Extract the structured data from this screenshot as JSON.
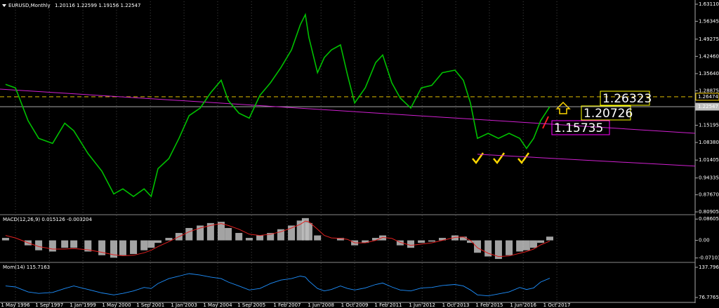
{
  "chart_data": [
    {
      "type": "line",
      "title": "EURUSD,Monthly",
      "subtitle": "1.20116 1.22599 1.19156 1.22547",
      "x": [
        1995.94,
        1996.33,
        1996.83,
        1997.25,
        1997.8,
        1998.28,
        1998.64,
        1999.2,
        1999.75,
        2000.22,
        2000.58,
        2001.0,
        2001.42,
        2001.7,
        2001.97,
        2002.4,
        2002.8,
        2003.2,
        2003.64,
        2004.05,
        2004.47,
        2004.75,
        2005.17,
        2005.58,
        2006.0,
        2006.42,
        2006.83,
        2007.25,
        2007.6,
        2007.8,
        2007.94,
        2008.28,
        2008.55,
        2008.83,
        2009.19,
        2009.47,
        2009.75,
        2010.17,
        2010.58,
        2010.86,
        2011.22,
        2011.55,
        2011.97,
        2012.39,
        2012.8,
        2013.22,
        2013.72,
        2014.05,
        2014.33,
        2014.61,
        2015.03,
        2015.44,
        2015.86,
        2016.28,
        2016.55,
        2016.83,
        2017.11,
        2017.47
      ],
      "series": [
        {
          "name": "EURUSD",
          "color": "#00c000",
          "values": [
            1.314,
            1.3,
            1.17,
            1.1,
            1.08,
            1.16,
            1.13,
            1.04,
            0.97,
            0.88,
            0.9,
            0.87,
            0.9,
            0.87,
            0.98,
            1.02,
            1.1,
            1.19,
            1.22,
            1.28,
            1.33,
            1.25,
            1.2,
            1.18,
            1.27,
            1.32,
            1.38,
            1.45,
            1.55,
            1.59,
            1.5,
            1.36,
            1.42,
            1.45,
            1.47,
            1.35,
            1.24,
            1.3,
            1.4,
            1.43,
            1.32,
            1.26,
            1.22,
            1.3,
            1.31,
            1.36,
            1.37,
            1.33,
            1.24,
            1.1,
            1.12,
            1.1,
            1.12,
            1.1,
            1.06,
            1.1,
            1.17,
            1.22547
          ]
        }
      ],
      "trendlines": [
        {
          "color": "#d020d0",
          "x": [
            1995.72,
            2023.22
          ],
          "values": [
            1.295,
            1.12
          ]
        },
        {
          "color": "#d020d0",
          "x": [
            2014.61,
            2023.22
          ],
          "values": [
            1.037,
            0.99
          ]
        }
      ],
      "levels": [
        {
          "value": 1.26474,
          "color": "#ffd700",
          "dashed": true
        },
        {
          "value": 1.22547,
          "color": "#c0c0c0",
          "dashed": false
        }
      ],
      "annotations": [
        {
          "text": "1.26323",
          "color": "#ffff00"
        },
        {
          "text": "1.20726",
          "color": "#ffff00"
        },
        {
          "text": "1.15735",
          "color": "#ff00ff"
        }
      ],
      "xlim": [
        1995.72,
        2023.22
      ],
      "ylim": [
        0.8007,
        1.6422
      ],
      "yticks": [
        {
          "value": 1.6311,
          "label": "1.63110"
        },
        1.56345,
        1.49275,
        {
          "value": 1.4246,
          "label": "1.42460"
        },
        {
          "value": 1.3564,
          "label": "1.35640"
        },
        1.28875,
        1.15195,
        {
          "value": 1.0838,
          "label": "1.08380"
        },
        1.01405,
        0.94335,
        {
          "value": 0.8767,
          "label": "0.87670"
        },
        0.80905
      ]
    },
    {
      "type": "macd",
      "title": "MACD(12,26,9) 0.015126 -0.003204",
      "x": [
        1995.94,
        1996.33,
        1996.83,
        1997.25,
        1997.8,
        1998.28,
        1998.64,
        1999.2,
        1999.75,
        2000.22,
        2000.58,
        2001.0,
        2001.42,
        2001.7,
        2001.97,
        2002.4,
        2002.8,
        2003.2,
        2003.64,
        2004.05,
        2004.47,
        2004.75,
        2005.17,
        2005.58,
        2006.0,
        2006.42,
        2006.83,
        2007.25,
        2007.6,
        2007.8,
        2007.94,
        2008.28,
        2008.55,
        2008.83,
        2009.19,
        2009.47,
        2009.75,
        2010.17,
        2010.58,
        2010.86,
        2011.22,
        2011.55,
        2011.97,
        2012.39,
        2012.8,
        2013.22,
        2013.72,
        2014.05,
        2014.33,
        2014.61,
        2015.03,
        2015.44,
        2015.86,
        2016.28,
        2016.55,
        2016.83,
        2017.11,
        2017.47
      ],
      "series": [
        {
          "name": "MACD",
          "color": "#c0c0c0",
          "values": [
            0.01,
            0.0,
            -0.02,
            -0.04,
            -0.045,
            -0.03,
            -0.03,
            -0.045,
            -0.06,
            -0.07,
            -0.06,
            -0.055,
            -0.04,
            -0.03,
            -0.01,
            0.01,
            0.03,
            0.05,
            0.06,
            0.07,
            0.075,
            0.05,
            0.03,
            0.01,
            0.02,
            0.03,
            0.045,
            0.06,
            0.08,
            0.09,
            0.07,
            0.02,
            0.0,
            0.0,
            0.01,
            0.0,
            -0.02,
            -0.01,
            0.01,
            0.02,
            0.0,
            -0.02,
            -0.03,
            -0.01,
            -0.005,
            0.01,
            0.02,
            0.015,
            -0.01,
            -0.05,
            -0.065,
            -0.075,
            -0.06,
            -0.045,
            -0.04,
            -0.03,
            -0.01,
            0.015126
          ]
        },
        {
          "name": "Signal",
          "color": "#e02020",
          "values": [
            0.02,
            0.01,
            -0.01,
            -0.025,
            -0.035,
            -0.035,
            -0.033,
            -0.038,
            -0.048,
            -0.058,
            -0.062,
            -0.06,
            -0.05,
            -0.04,
            -0.025,
            -0.005,
            0.015,
            0.035,
            0.05,
            0.06,
            0.068,
            0.06,
            0.045,
            0.025,
            0.02,
            0.025,
            0.035,
            0.05,
            0.065,
            0.078,
            0.075,
            0.045,
            0.02,
            0.01,
            0.008,
            0.004,
            -0.01,
            -0.01,
            0.0,
            0.012,
            0.008,
            -0.008,
            -0.02,
            -0.015,
            -0.01,
            0.0,
            0.012,
            0.014,
            0.0,
            -0.03,
            -0.052,
            -0.065,
            -0.063,
            -0.052,
            -0.045,
            -0.035,
            -0.018,
            -0.003204
          ]
        }
      ],
      "xlim": [
        1995.72,
        2023.22
      ],
      "ylim": [
        -0.0861,
        0.1009
      ],
      "yticks": [
        0.086054,
        {
          "value": 0,
          "label": "0.00"
        },
        -0.071034
      ]
    },
    {
      "type": "line",
      "title": "Mom(14) 115.7163",
      "x": [
        1995.94,
        1996.33,
        1996.83,
        1997.25,
        1997.8,
        1998.28,
        1998.64,
        1999.2,
        1999.75,
        2000.22,
        2000.58,
        2001.0,
        2001.42,
        2001.7,
        2001.97,
        2002.4,
        2002.8,
        2003.2,
        2003.64,
        2004.05,
        2004.47,
        2004.75,
        2005.17,
        2005.58,
        2006.0,
        2006.42,
        2006.83,
        2007.25,
        2007.6,
        2007.8,
        2007.94,
        2008.28,
        2008.55,
        2008.83,
        2009.19,
        2009.47,
        2009.75,
        2010.17,
        2010.58,
        2010.86,
        2011.22,
        2011.55,
        2011.97,
        2012.39,
        2012.8,
        2013.22,
        2013.72,
        2014.05,
        2014.33,
        2014.61,
        2015.03,
        2015.44,
        2015.86,
        2016.28,
        2016.55,
        2016.83,
        2017.11,
        2017.47
      ],
      "series": [
        {
          "name": "Mom",
          "color": "#1e90ff",
          "values": [
            100,
            98,
            88,
            85,
            87,
            95,
            100,
            93,
            86,
            82,
            85,
            90,
            97,
            95,
            105,
            115,
            120,
            125,
            122,
            118,
            115,
            108,
            100,
            92,
            95,
            105,
            112,
            115,
            120,
            118,
            110,
            95,
            90,
            93,
            100,
            95,
            92,
            96,
            103,
            106,
            98,
            92,
            90,
            96,
            97,
            101,
            103,
            100,
            92,
            82,
            80,
            84,
            88,
            97,
            93,
            96,
            108,
            115.7163
          ]
        }
      ],
      "xlim": [
        1995.72,
        2023.22
      ],
      "ylim": [
        68.26,
        146.3
      ],
      "yticks": [
        137.7966,
        76.7765
      ],
      "xticks": [
        {
          "value": 1996.33,
          "label": "1 May 1996"
        },
        {
          "value": 1997.67,
          "label": "1 Sep 1997"
        },
        {
          "value": 1999.0,
          "label": "1 Jan 1999"
        },
        {
          "value": 2000.33,
          "label": "1 May 2000"
        },
        {
          "value": 2001.67,
          "label": "1 Sep 2001"
        },
        {
          "value": 2003.0,
          "label": "1 Jan 2003"
        },
        {
          "value": 2004.33,
          "label": "1 May 2004"
        },
        {
          "value": 2005.67,
          "label": "1 Sep 2005"
        },
        {
          "value": 2007.08,
          "label": "1 Feb 2007"
        },
        {
          "value": 2008.42,
          "label": "1 Jun 2008"
        },
        {
          "value": 2009.75,
          "label": "1 Oct 2009"
        },
        {
          "value": 2011.08,
          "label": "1 Feb 2011"
        },
        {
          "value": 2012.42,
          "label": "1 Jun 2012"
        },
        {
          "value": 2013.75,
          "label": "1 Oct 2013"
        },
        {
          "value": 2015.08,
          "label": "1 Feb 2015"
        },
        {
          "value": 2016.42,
          "label": "1 Jun 2016"
        },
        {
          "value": 2017.75,
          "label": "1 Oct 2017"
        }
      ]
    }
  ]
}
